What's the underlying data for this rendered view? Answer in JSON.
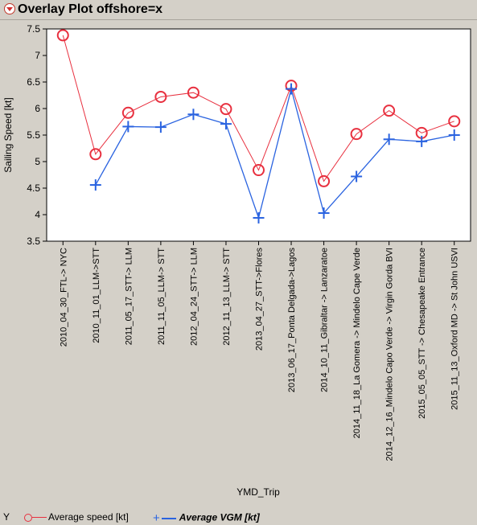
{
  "window": {
    "title": "Overlay Plot offshore=x"
  },
  "legend": {
    "y_label": "Y",
    "series1_label": "Average speed [kt]",
    "series2_label": "Average VGM    [kt]"
  },
  "colors": {
    "speed": "#e8303f",
    "vgm": "#2a63e0"
  },
  "chart_data": {
    "type": "line",
    "xlabel": "YMD_Trip",
    "ylabel": "Sailing Speed [kt]",
    "ylim": [
      3.5,
      7.5
    ],
    "yticks": [
      "7.5",
      "7",
      "6.5",
      "6",
      "5.5",
      "5",
      "4.5",
      "4",
      "3.5"
    ],
    "categories": [
      "2010_04_30_FTL-> NYC",
      "2010_11_01_LLM->STT",
      "2011_05_17_STT-> LLM",
      "2011_11_05_LLM-> STT",
      "2012_04_24_STT-> LLM",
      "2012_11_13_LLM-> STT",
      "2013_04_27_STT->Flores",
      "2013_06_17_Ponta Delgada->Lagos",
      "2014_10_11_Gibraltar -> Lanzaratoe",
      "2014_11_18_La Gomera -> Mindelo Cape Verde",
      "2014_12_16_Mindelo Capo Verde -> Virgin Gorda BVI",
      "2015_05_05_STT -> Chesapeake Entrance",
      "2015_11_13_Oxford MD -> St John USVI"
    ],
    "series": [
      {
        "name": "Average speed [kt]",
        "values": [
          7.38,
          5.14,
          5.92,
          6.22,
          6.3,
          5.99,
          4.84,
          6.43,
          4.63,
          5.52,
          5.96,
          5.54,
          5.76
        ]
      },
      {
        "name": "Average VGM    [kt]",
        "values": [
          null,
          4.56,
          5.66,
          5.65,
          5.89,
          5.71,
          3.94,
          6.37,
          4.03,
          4.72,
          5.42,
          5.38,
          5.5
        ]
      }
    ],
    "grid": false,
    "legend_position": "bottom"
  }
}
